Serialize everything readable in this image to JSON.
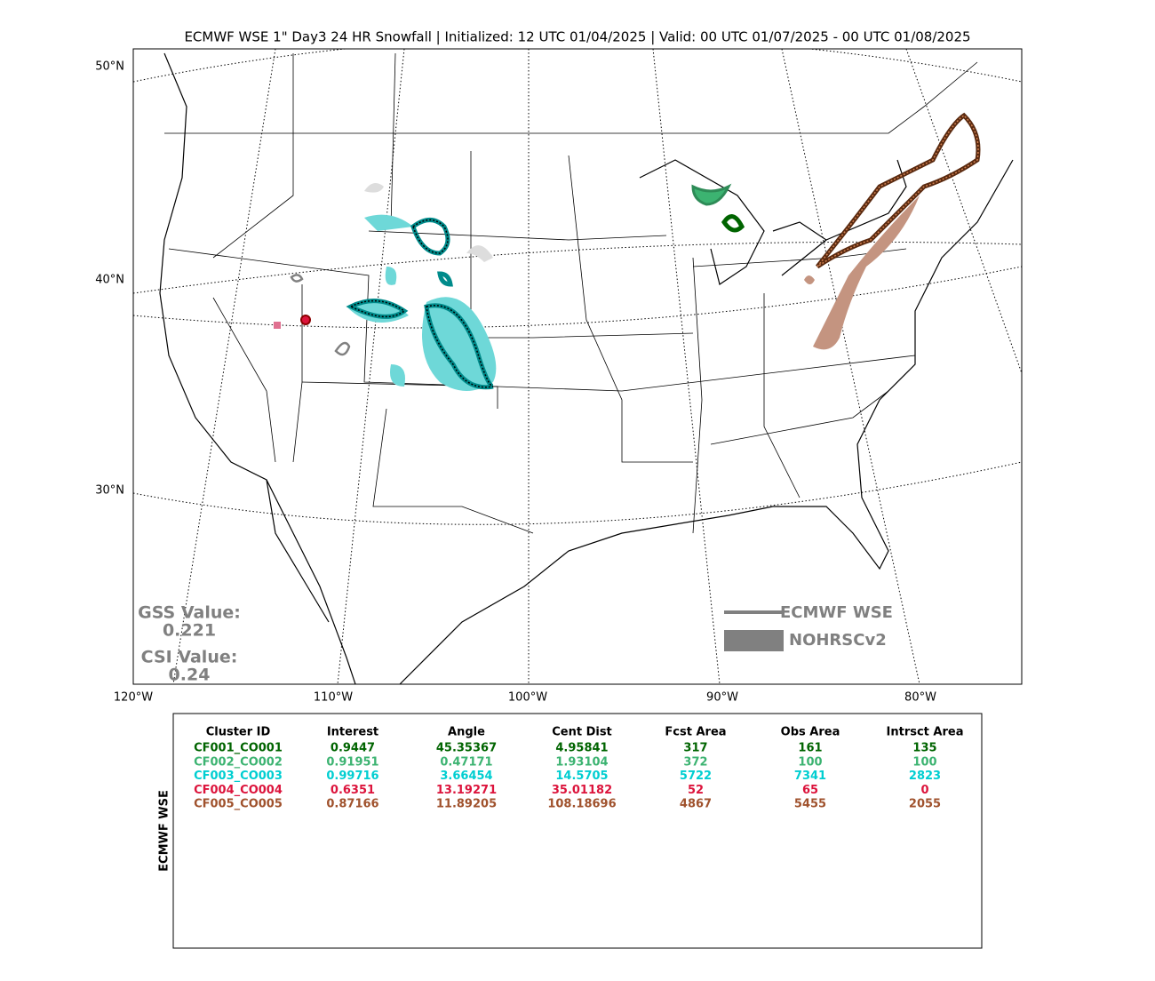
{
  "title": "ECMWF WSE 1\" Day3 24 HR Snowfall | Initialized: 12 UTC 01/04/2025 | Valid: 00 UTC 01/07/2025 - 00 UTC 01/08/2025",
  "map": {
    "lat_labels": [
      "50°N",
      "40°N",
      "30°N"
    ],
    "lon_labels": [
      "120°W",
      "110°W",
      "100°W",
      "90°W",
      "80°W"
    ]
  },
  "stats": [
    {
      "label": "GSS Value:",
      "value": "0.221"
    },
    {
      "label": "CSI Value:",
      "value": "0.24"
    }
  ],
  "legend": [
    {
      "name": "ECMWF WSE",
      "color": "#808080"
    },
    {
      "name": "NOHRSCv2",
      "color": "#808080"
    }
  ],
  "table": {
    "side_label": "ECMWF WSE",
    "headers": [
      "Cluster ID",
      "Interest",
      "Angle",
      "Cent Dist",
      "Fcst Area",
      "Obs Area",
      "Intrsct Area"
    ],
    "rows": [
      {
        "color": "#006400",
        "cells": [
          "CF001_CO001",
          "0.9447",
          "45.35367",
          "4.95841",
          "317",
          "161",
          "135"
        ]
      },
      {
        "color": "#3cb371",
        "cells": [
          "CF002_CO002",
          "0.91951",
          "0.47171",
          "1.93104",
          "372",
          "100",
          "100"
        ]
      },
      {
        "color": "#00ced1",
        "cells": [
          "CF003_CO003",
          "0.99716",
          "3.66454",
          "14.5705",
          "5722",
          "7341",
          "2823"
        ]
      },
      {
        "color": "#dc143c",
        "cells": [
          "CF004_CO004",
          "0.6351",
          "13.19271",
          "35.01182",
          "52",
          "65",
          "0"
        ]
      },
      {
        "color": "#a0522d",
        "cells": [
          "CF005_CO005",
          "0.87166",
          "11.89205",
          "108.18696",
          "4867",
          "5455",
          "2055"
        ]
      }
    ]
  }
}
